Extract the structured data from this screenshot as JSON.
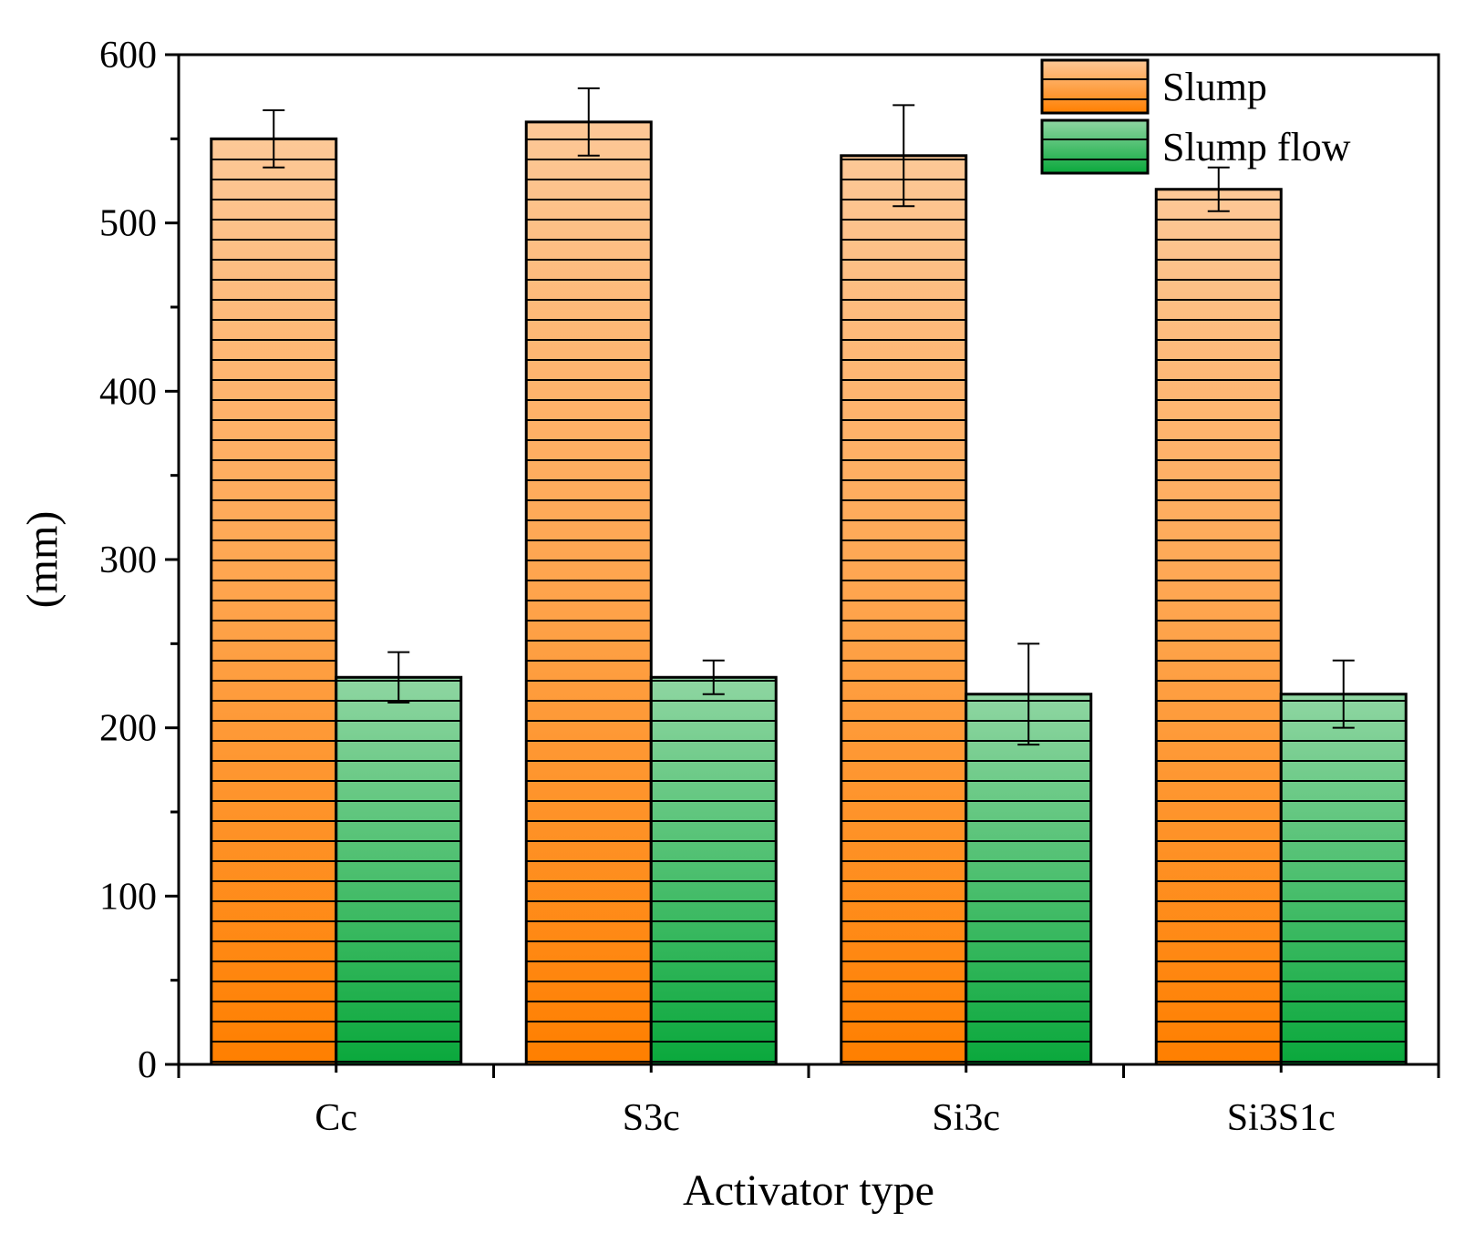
{
  "chart_data": {
    "type": "bar",
    "title": "",
    "xlabel": "Activator type",
    "ylabel": "(mm)",
    "ylim": [
      0,
      600
    ],
    "yticks": [
      0,
      100,
      200,
      300,
      400,
      500,
      600
    ],
    "ytick_labels": [
      "0",
      "100",
      "200",
      "300",
      "400",
      "500",
      "600"
    ],
    "categories": [
      "Cc",
      "S3c",
      "Si3c",
      "Si3S1c"
    ],
    "series": [
      {
        "name": "Slump",
        "values": [
          550,
          560,
          540,
          520
        ],
        "errors": [
          17,
          20,
          30,
          13
        ],
        "color_top": "#fdc897",
        "color_bottom": "#ff7f00"
      },
      {
        "name": "Slump flow",
        "values": [
          230,
          230,
          220,
          220
        ],
        "errors": [
          15,
          10,
          30,
          20
        ],
        "color_top": "#8fd6a2",
        "color_bottom": "#0aa83c"
      }
    ],
    "legend_position": "top-right",
    "grid": false
  }
}
